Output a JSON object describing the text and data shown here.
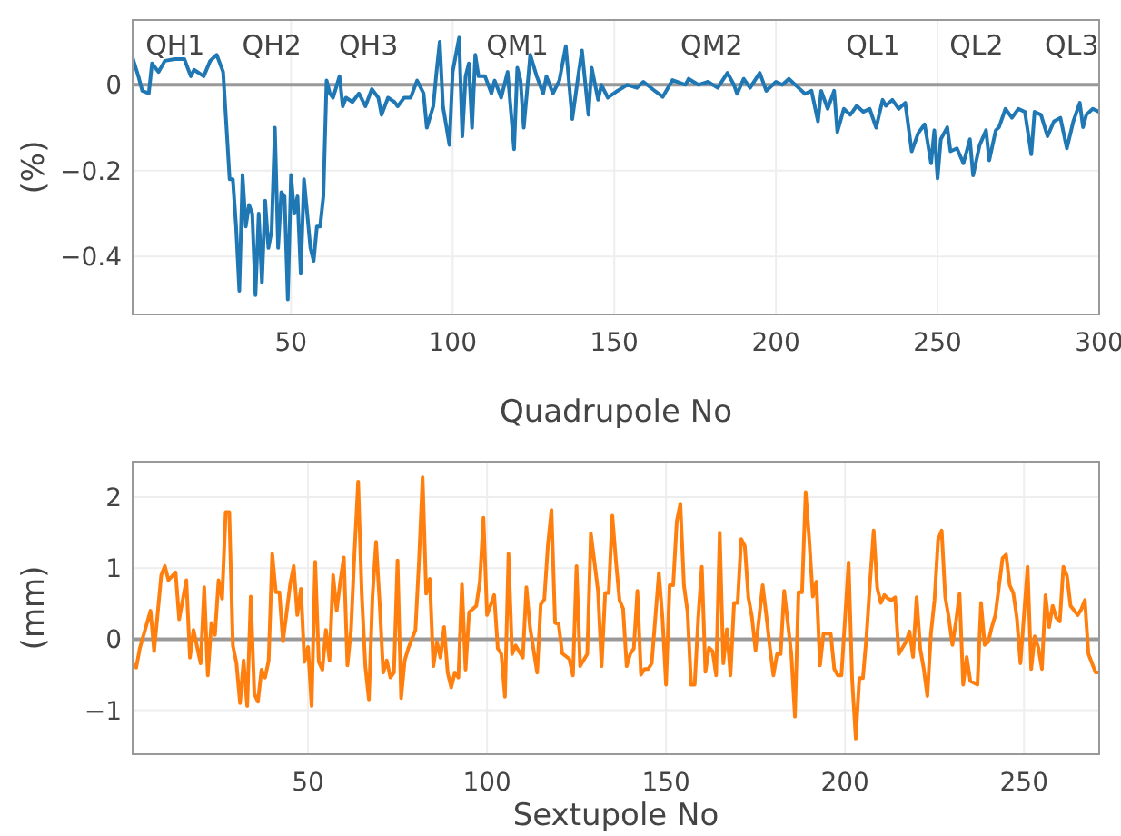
{
  "chart_data": [
    {
      "type": "line",
      "xlabel": "Quadrupole No",
      "ylabel": "(%)",
      "color": "#1f77b4",
      "grid": true,
      "xlim": [
        1,
        300
      ],
      "ylim": [
        -0.535,
        0.151
      ],
      "xticks": [
        50,
        100,
        150,
        200,
        250,
        300
      ],
      "yticks": [
        {
          "value": -0.4,
          "label": "−0.4"
        },
        {
          "value": -0.2,
          "label": "−0.2"
        },
        0
      ],
      "ref_lines": [
        {
          "axis": "y",
          "value": 0,
          "color": "#999999"
        }
      ],
      "annotations": [
        "QH1",
        "QH2",
        "QH3",
        "QM1",
        "QM2",
        "QL1",
        "QL2",
        "QL3"
      ],
      "x": [
        1,
        3,
        4,
        6,
        7,
        9,
        11,
        14,
        17,
        19,
        20,
        23,
        25,
        27,
        29,
        31,
        32,
        33,
        34,
        35,
        36,
        37,
        38,
        39,
        40,
        41,
        42,
        43,
        44,
        45,
        46,
        47,
        48,
        49,
        50,
        51,
        52,
        53,
        54,
        55,
        56,
        57,
        58,
        59,
        60,
        61,
        62,
        63,
        65,
        66,
        67,
        69,
        71,
        73,
        75,
        77,
        78,
        80,
        82,
        83,
        85,
        87,
        89,
        91,
        92,
        94,
        95,
        96,
        97,
        99,
        100,
        102,
        103,
        104,
        105,
        106,
        107,
        108,
        110,
        112,
        113,
        115,
        117,
        119,
        120,
        121,
        122,
        124,
        126,
        128,
        129,
        131,
        133,
        135,
        137,
        139,
        140,
        142,
        143,
        145,
        146,
        148,
        151,
        154,
        157,
        159,
        162,
        165,
        168,
        172,
        173,
        176,
        179,
        182,
        185,
        187,
        188,
        190,
        192,
        195,
        197,
        200,
        202,
        204,
        207,
        209,
        211,
        213,
        214,
        216,
        218,
        219,
        221,
        223,
        225,
        227,
        229,
        231,
        233,
        234,
        236,
        238,
        240,
        242,
        244,
        246,
        248,
        249,
        250,
        251,
        253,
        254,
        256,
        258,
        260,
        261,
        263,
        265,
        266,
        268,
        269,
        271,
        273,
        275,
        277,
        279,
        280,
        282,
        284,
        286,
        288,
        290,
        292,
        294,
        295,
        296,
        298,
        300
      ],
      "values": [
        0.063,
        0.014,
        -0.014,
        -0.02,
        0.05,
        0.03,
        0.056,
        0.06,
        0.06,
        0.02,
        0.035,
        0.02,
        0.056,
        0.07,
        0.03,
        -0.22,
        -0.22,
        -0.33,
        -0.48,
        -0.21,
        -0.33,
        -0.28,
        -0.3,
        -0.49,
        -0.3,
        -0.46,
        -0.27,
        -0.38,
        -0.34,
        -0.1,
        -0.38,
        -0.25,
        -0.26,
        -0.5,
        -0.21,
        -0.3,
        -0.26,
        -0.44,
        -0.22,
        -0.3,
        -0.38,
        -0.41,
        -0.33,
        -0.33,
        -0.26,
        0.01,
        -0.02,
        -0.03,
        0.02,
        -0.05,
        -0.03,
        -0.04,
        -0.02,
        -0.05,
        -0.01,
        -0.03,
        -0.07,
        -0.03,
        -0.04,
        -0.05,
        -0.03,
        -0.03,
        0.01,
        -0.02,
        -0.1,
        -0.05,
        0.03,
        0.1,
        -0.05,
        -0.14,
        0.03,
        0.11,
        -0.12,
        0.02,
        0.05,
        -0.1,
        0.07,
        0.02,
        0.02,
        -0.02,
        0.01,
        -0.03,
        0.03,
        -0.15,
        0.04,
        0.01,
        -0.1,
        0.07,
        0.02,
        -0.02,
        0.02,
        -0.02,
        0.01,
        0.09,
        -0.08,
        0.03,
        0.08,
        -0.07,
        0.04,
        -0.035,
        0,
        -0.03,
        -0.014,
        0,
        -0.007,
        0.007,
        -0.011,
        -0.028,
        0.011,
        0,
        0.014,
        0,
        0.007,
        -0.007,
        0.028,
        0,
        -0.021,
        0.014,
        -0.007,
        0.028,
        -0.014,
        0.007,
        0,
        0.014,
        -0.007,
        -0.021,
        -0.014,
        -0.085,
        -0.014,
        -0.056,
        -0.014,
        -0.11,
        -0.056,
        -0.07,
        -0.049,
        -0.063,
        -0.056,
        -0.1,
        -0.035,
        -0.049,
        -0.035,
        -0.056,
        -0.042,
        -0.155,
        -0.113,
        -0.092,
        -0.183,
        -0.106,
        -0.218,
        -0.127,
        -0.099,
        -0.155,
        -0.148,
        -0.183,
        -0.127,
        -0.211,
        -0.141,
        -0.106,
        -0.176,
        -0.106,
        -0.099,
        -0.056,
        -0.077,
        -0.056,
        -0.063,
        -0.162,
        -0.063,
        -0.07,
        -0.12,
        -0.085,
        -0.077,
        -0.148,
        -0.085,
        -0.042,
        -0.099,
        -0.07,
        -0.056,
        -0.063
      ]
    },
    {
      "type": "line",
      "xlabel": "Sextupole No",
      "ylabel": "(mm)",
      "color": "#ff7f0e",
      "grid": true,
      "xlim": [
        1,
        271
      ],
      "ylim": [
        -1.62,
        2.5
      ],
      "xticks": [
        50,
        100,
        150,
        200,
        250
      ],
      "yticks": [
        {
          "value": -1,
          "label": "−1"
        },
        0,
        1,
        2
      ],
      "ref_lines": [
        {
          "axis": "y",
          "value": 0,
          "color": "#999999"
        }
      ],
      "x": [
        1,
        2,
        3,
        6,
        7,
        9,
        10,
        11,
        13,
        14,
        16,
        17,
        18,
        20,
        21,
        22,
        23,
        24,
        25,
        26,
        27,
        28,
        29,
        30,
        31,
        32,
        33,
        34,
        35,
        36,
        37,
        38,
        39,
        40,
        41,
        42,
        43,
        45,
        46,
        47,
        48,
        49,
        50,
        51,
        52,
        53,
        54,
        55,
        56,
        57,
        58,
        59,
        60,
        61,
        62,
        63,
        64,
        65,
        66,
        67,
        68,
        69,
        70,
        71,
        72,
        73,
        74,
        75,
        76,
        77,
        78,
        80,
        81,
        82,
        83,
        84,
        85,
        86,
        87,
        88,
        89,
        90,
        91,
        92,
        93,
        94,
        95,
        97,
        98,
        99,
        100,
        102,
        103,
        104,
        105,
        106,
        107,
        108,
        110,
        111,
        112,
        114,
        115,
        116,
        117,
        118,
        119,
        120,
        121,
        123,
        124,
        125,
        126,
        128,
        129,
        131,
        132,
        133,
        134,
        135,
        136,
        137,
        138,
        139,
        140,
        141,
        142,
        143,
        144,
        145,
        146,
        148,
        149,
        150,
        151,
        152,
        153,
        154,
        155,
        156,
        157,
        158,
        159,
        160,
        161,
        162,
        163,
        164,
        165,
        166,
        167,
        168,
        169,
        170,
        171,
        172,
        173,
        174,
        175,
        177,
        178,
        179,
        180,
        181,
        182,
        183,
        185,
        186,
        187,
        188,
        189,
        190,
        191,
        192,
        193,
        194,
        196,
        197,
        198,
        199,
        201,
        202,
        203,
        204,
        205,
        206,
        207,
        208,
        209,
        210,
        211,
        212,
        213,
        214,
        215,
        217,
        218,
        219,
        220,
        221,
        222,
        223,
        224,
        225,
        226,
        227,
        228,
        229,
        230,
        231,
        232,
        233,
        234,
        235,
        237,
        238,
        239,
        240,
        241,
        242,
        244,
        245,
        246,
        247,
        248,
        249,
        251,
        252,
        253,
        254,
        255,
        256,
        257,
        258,
        259,
        260,
        261,
        262,
        263,
        265,
        266,
        267,
        268,
        270,
        271
      ],
      "values": [
        -0.34,
        -0.4,
        -0.13,
        0.4,
        -0.17,
        0.9,
        1.03,
        0.83,
        0.94,
        0.28,
        0.83,
        -0.26,
        0.13,
        -0.34,
        0.73,
        -0.51,
        0.23,
        0.06,
        0.83,
        0.57,
        1.79,
        1.79,
        -0.09,
        -0.34,
        -0.9,
        -0.3,
        -0.94,
        0.6,
        -0.77,
        -0.88,
        -0.43,
        -0.54,
        -0.3,
        1.2,
        0.66,
        0.66,
        -0.03,
        0.77,
        1.03,
        0.34,
        0.71,
        -0.32,
        -0.11,
        -0.94,
        1.09,
        -0.32,
        -0.43,
        0.13,
        -0.3,
        0.9,
        0.4,
        0.81,
        1.15,
        -0.37,
        0.13,
        1.24,
        2.22,
        0.64,
        -0.38,
        -0.85,
        0.6,
        1.37,
        0.51,
        -0.47,
        -0.3,
        -0.54,
        -0.47,
        1.11,
        -0.83,
        -0.3,
        -0.13,
        0.13,
        1.11,
        2.28,
        0.64,
        0.85,
        -0.38,
        -0.04,
        -0.26,
        0.17,
        -0.47,
        -0.68,
        -0.47,
        -0.54,
        0.77,
        -0.43,
        0.38,
        0.47,
        0.81,
        1.71,
        0.34,
        0.62,
        -0.13,
        -0.21,
        -0.81,
        1.2,
        -0.21,
        -0.09,
        -0.26,
        0.73,
        0.17,
        -0.47,
        0.49,
        0.56,
        1.32,
        1.82,
        0.23,
        0.21,
        -0.2,
        -0.28,
        -0.51,
        1.03,
        -0.38,
        -0.21,
        1.49,
        0.68,
        -0.38,
        0.65,
        0.65,
        1.74,
        1.1,
        0.55,
        0.43,
        -0.38,
        -0.21,
        -0.13,
        0.68,
        -0.5,
        -0.42,
        -0.42,
        -0.34,
        0.93,
        0.3,
        -0.64,
        0.76,
        0.76,
        1.66,
        1.91,
        0.76,
        0.39,
        -0.64,
        -0.64,
        0.3,
        1.02,
        -0.46,
        -0.12,
        -0.17,
        -0.51,
        1.5,
        -0.34,
        0.14,
        -0.51,
        0.51,
        0.51,
        1.41,
        1.31,
        0.59,
        0.31,
        -0.16,
        0.76,
        0.34,
        -0.11,
        -0.51,
        -0.21,
        -0.21,
        0.68,
        -0.21,
        -1.09,
        0.66,
        0.66,
        2.07,
        1.4,
        0.6,
        0.81,
        -0.37,
        0.08,
        0.08,
        -0.42,
        -0.51,
        -0.51,
        1.08,
        -0.58,
        -1.4,
        -0.55,
        -0.55,
        0.04,
        0.81,
        1.53,
        0.72,
        0.51,
        0.62,
        0.57,
        0.55,
        0.59,
        -0.21,
        -0.04,
        0.11,
        -0.25,
        0.59,
        -0.13,
        -0.42,
        -0.8,
        0.08,
        0.55,
        1.4,
        1.53,
        0.59,
        0.3,
        -0.08,
        0.25,
        0.64,
        -0.64,
        -0.25,
        -0.59,
        -0.64,
        0.51,
        -0.08,
        -0.04,
        0.17,
        0.34,
        1.14,
        1.19,
        0.76,
        0.65,
        0.3,
        -0.34,
        1.02,
        -0.42,
        0.04,
        -0.12,
        -0.42,
        0.62,
        0.17,
        0.47,
        0.3,
        0.25,
        1.02,
        0.89,
        0.47,
        0.34,
        0.42,
        0.55,
        -0.21,
        -0.47,
        -0.47
      ]
    }
  ]
}
